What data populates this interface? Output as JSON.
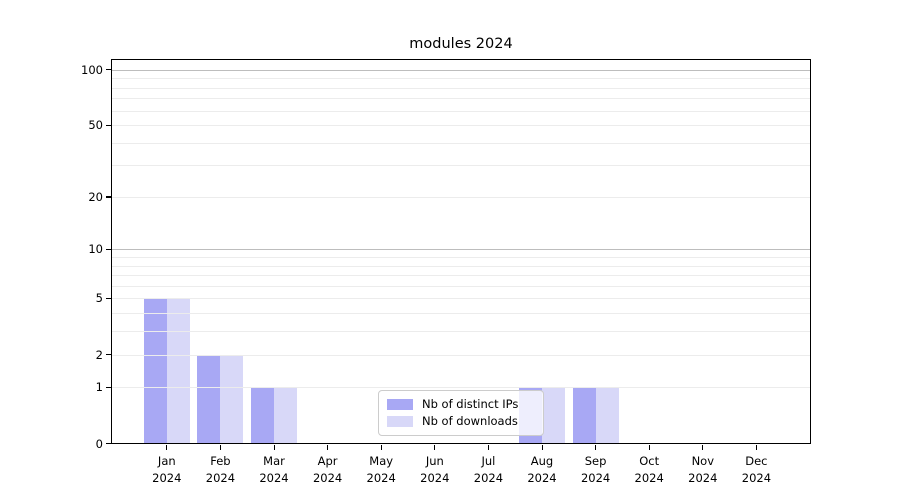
{
  "chart_data": {
    "type": "bar",
    "title": "modules 2024",
    "xlabel": "",
    "ylabel": "",
    "yscale": "log1p",
    "ylim": [
      0,
      113
    ],
    "background": "#ffffff",
    "axis_color": "#000000",
    "categories": [
      {
        "month": "Jan",
        "year": "2024"
      },
      {
        "month": "Feb",
        "year": "2024"
      },
      {
        "month": "Mar",
        "year": "2024"
      },
      {
        "month": "Apr",
        "year": "2024"
      },
      {
        "month": "May",
        "year": "2024"
      },
      {
        "month": "Jun",
        "year": "2024"
      },
      {
        "month": "Jul",
        "year": "2024"
      },
      {
        "month": "Aug",
        "year": "2024"
      },
      {
        "month": "Sep",
        "year": "2024"
      },
      {
        "month": "Oct",
        "year": "2024"
      },
      {
        "month": "Nov",
        "year": "2024"
      },
      {
        "month": "Dec",
        "year": "2024"
      }
    ],
    "series": [
      {
        "name": "Nb of distinct IPs",
        "color": "#a8a8f4",
        "values": [
          5,
          2,
          1,
          0,
          0,
          0,
          0,
          1,
          1,
          0,
          0,
          0
        ]
      },
      {
        "name": "Nb of downloads",
        "color": "#d8d8f8",
        "values": [
          5,
          2,
          1,
          0,
          0,
          0,
          0,
          1,
          1,
          0,
          0,
          0
        ]
      }
    ],
    "yticks": [
      {
        "value": 100,
        "label": "100"
      },
      {
        "value": 50,
        "label": "50"
      },
      {
        "value": 20,
        "label": "20"
      },
      {
        "value": 10,
        "label": "10"
      },
      {
        "value": 5,
        "label": "5"
      },
      {
        "value": 2,
        "label": "2"
      },
      {
        "value": 1,
        "label": "1"
      },
      {
        "value": 0,
        "label": "0"
      }
    ],
    "grid": {
      "minor_values": [
        1,
        2,
        3,
        4,
        5,
        6,
        7,
        8,
        9,
        20,
        30,
        40,
        50,
        60,
        70,
        80,
        90
      ],
      "major_values": [
        10,
        100
      ],
      "minor_color": "#ececec",
      "major_color": "#bdbdbd"
    },
    "legend": {
      "position": "lower-center-inside",
      "entries": [
        "Nb of distinct IPs",
        "Nb of downloads"
      ]
    }
  }
}
